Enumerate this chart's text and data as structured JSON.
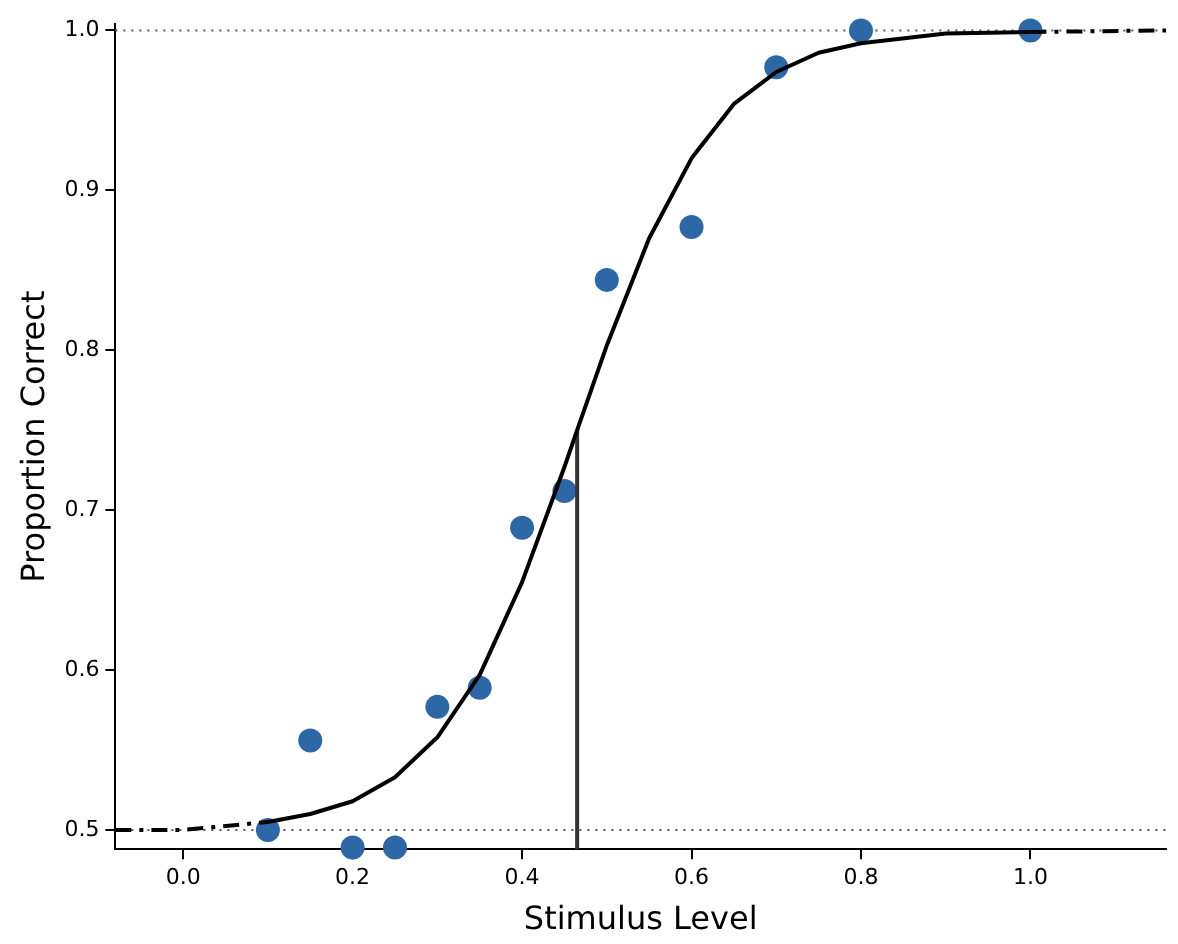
{
  "chart_data": {
    "type": "scatter",
    "xlabel": "Stimulus Level",
    "ylabel": "Proportion Correct",
    "xlim": [
      -0.08,
      1.16
    ],
    "ylim": [
      0.488,
      1.004
    ],
    "xticks": [
      {
        "value": 0,
        "label": "0.0"
      },
      {
        "value": 0.2,
        "label": "0.2"
      },
      {
        "value": 0.4,
        "label": "0.4"
      },
      {
        "value": 0.6,
        "label": "0.6"
      },
      {
        "value": 0.8,
        "label": "0.8"
      },
      {
        "value": 1,
        "label": "1.0"
      }
    ],
    "yticks": [
      {
        "value": 0.5,
        "label": "0.5"
      },
      {
        "value": 0.6,
        "label": "0.6"
      },
      {
        "value": 0.7,
        "label": "0.7"
      },
      {
        "value": 0.8,
        "label": "0.8"
      },
      {
        "value": 0.9,
        "label": "0.9"
      },
      {
        "value": 1,
        "label": "1.0"
      }
    ],
    "grid": false,
    "legend": false,
    "ref_lines": [
      {
        "axis": "y",
        "value": 0.5,
        "color": "#555555",
        "line_style": "dotted"
      },
      {
        "axis": "y",
        "value": 1.0,
        "color": "#555555",
        "line_style": "dotted"
      }
    ],
    "series": [
      {
        "type": "line",
        "color": "#000000",
        "line_style": "dashed",
        "marker": "none",
        "x": [
          -0.08,
          0.0,
          0.1
        ],
        "values": [
          0.5,
          0.5,
          0.505
        ]
      },
      {
        "type": "line",
        "color": "#000000",
        "line_style": "solid",
        "marker": "none",
        "x": [
          0.1,
          0.15,
          0.2,
          0.25,
          0.3,
          0.35,
          0.4,
          0.45,
          0.465,
          0.5,
          0.55,
          0.6,
          0.65,
          0.7,
          0.75,
          0.8,
          0.9,
          1.0
        ],
        "values": [
          0.505,
          0.51,
          0.518,
          0.533,
          0.558,
          0.597,
          0.655,
          0.727,
          0.75,
          0.803,
          0.87,
          0.92,
          0.954,
          0.974,
          0.986,
          0.992,
          0.998,
          0.999
        ]
      },
      {
        "type": "line",
        "color": "#000000",
        "line_style": "dashed",
        "marker": "none",
        "x": [
          1.0,
          1.16
        ],
        "values": [
          0.999,
          1.0
        ]
      },
      {
        "type": "line",
        "color": "#333333",
        "line_style": "solid",
        "marker": "none",
        "x": [
          0.465,
          0.465
        ],
        "values": [
          0.488,
          0.75
        ]
      },
      {
        "color": "#2e67a6",
        "marker": "circle",
        "x": [
          0.1,
          0.15,
          0.2,
          0.25,
          0.3,
          0.35,
          0.4,
          0.45,
          0.5,
          0.6,
          0.7,
          0.8,
          1.0
        ],
        "values": [
          0.5,
          0.556,
          0.489,
          0.489,
          0.577,
          0.589,
          0.689,
          0.712,
          0.844,
          0.877,
          0.977,
          1.0,
          1.0
        ]
      }
    ]
  }
}
